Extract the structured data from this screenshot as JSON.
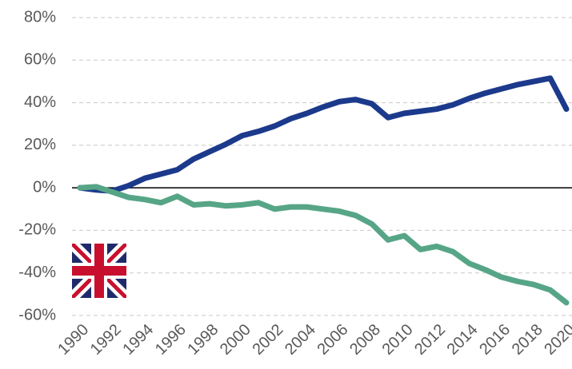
{
  "chart_data": {
    "type": "line",
    "x": [
      1990,
      1991,
      1992,
      1993,
      1994,
      1995,
      1996,
      1997,
      1998,
      1999,
      2000,
      2001,
      2002,
      2003,
      2004,
      2005,
      2006,
      2007,
      2008,
      2009,
      2010,
      2011,
      2012,
      2013,
      2014,
      2015,
      2016,
      2017,
      2018,
      2019,
      2020
    ],
    "series": [
      {
        "color": "#1c3a8c",
        "values": [
          0,
          -1,
          -1.5,
          1,
          4.5,
          6.5,
          8.5,
          13.5,
          17,
          20.5,
          24.5,
          26.5,
          29,
          32.5,
          35,
          38,
          40.5,
          41.5,
          39.5,
          33,
          35,
          36,
          37,
          39,
          42,
          44.5,
          46.5,
          48.5,
          50,
          51.5,
          37
        ]
      },
      {
        "color": "#57a587",
        "values": [
          0,
          0.5,
          -2,
          -4.5,
          -5.5,
          -7,
          -4,
          -8,
          -7.5,
          -8.5,
          -8,
          -7,
          -10,
          -9,
          -9,
          -10,
          -11,
          -13,
          -17,
          -24.5,
          -22.5,
          -29,
          -27.5,
          -30,
          -35.5,
          -38.5,
          -42,
          -44,
          -45.5,
          -48,
          -54
        ]
      }
    ],
    "xlim": [
      1990,
      2020
    ],
    "xticks": [
      1990,
      1992,
      1994,
      1996,
      1998,
      2000,
      2002,
      2004,
      2006,
      2008,
      2010,
      2012,
      2014,
      2016,
      2018,
      2020
    ],
    "ylim": [
      -60,
      80
    ],
    "yticks": [
      {
        "value": -60,
        "label": "-60%"
      },
      {
        "value": -40,
        "label": "-40%"
      },
      {
        "value": -20,
        "label": "-20%"
      },
      {
        "value": 0,
        "label": "0%"
      },
      {
        "value": 20,
        "label": "20%"
      },
      {
        "value": 40,
        "label": "40%"
      },
      {
        "value": 60,
        "label": "60%"
      },
      {
        "value": 80,
        "label": "80%"
      }
    ],
    "grid": true
  }
}
